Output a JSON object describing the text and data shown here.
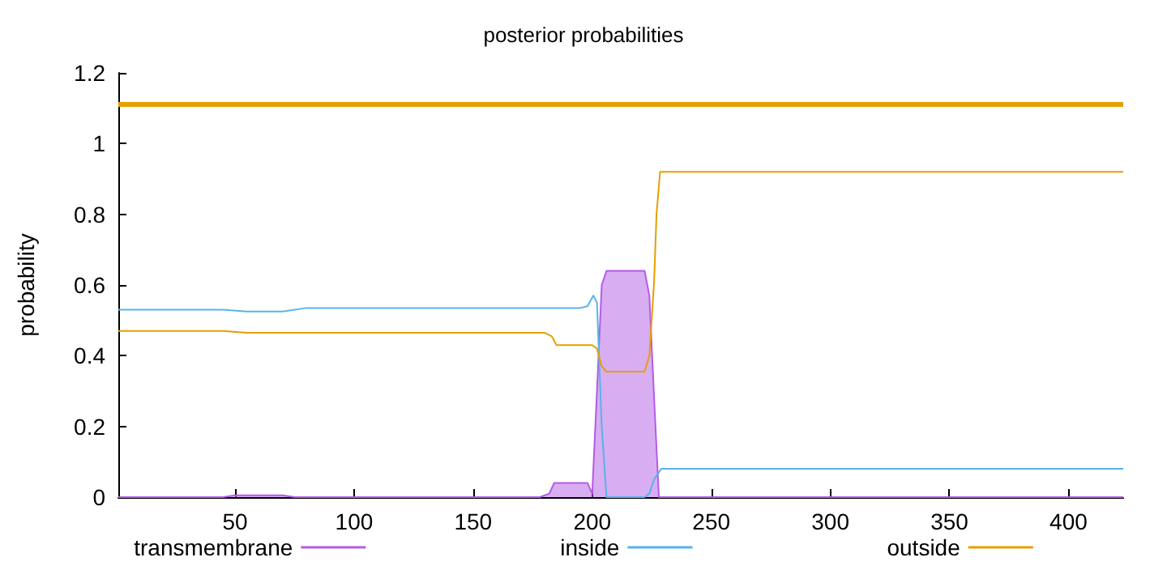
{
  "chart_data": {
    "type": "line",
    "title": "posterior probabilities",
    "ylabel": "probability",
    "xlim": [
      1,
      423
    ],
    "xticks": [
      50,
      100,
      150,
      200,
      250,
      300,
      350,
      400
    ],
    "ylim": [
      0,
      1.2
    ],
    "yticks": [
      0,
      0.2,
      0.4,
      0.6,
      0.8,
      1,
      1.2
    ],
    "grid": false,
    "legend": "bottom",
    "marker": "none",
    "line_style": "solid",
    "series": [
      {
        "name": "transmembrane",
        "type": "area",
        "color": "#b35ce6",
        "x": [
          1,
          45,
          50,
          70,
          75,
          178,
          182,
          184,
          198,
          200,
          202,
          204,
          206,
          222,
          224,
          226,
          228,
          230,
          423
        ],
        "values": [
          0,
          0,
          0.005,
          0.005,
          0,
          0,
          0.01,
          0.04,
          0.04,
          0.01,
          0.3,
          0.6,
          0.64,
          0.64,
          0.57,
          0.28,
          0,
          0,
          0
        ]
      },
      {
        "name": "inside",
        "color": "#56b4e9",
        "x": [
          1,
          45,
          55,
          70,
          80,
          195,
          198,
          200.5,
          202,
          204,
          206,
          222,
          224,
          226,
          229,
          423
        ],
        "values": [
          0.53,
          0.53,
          0.525,
          0.525,
          0.535,
          0.535,
          0.54,
          0.57,
          0.55,
          0.2,
          0,
          0,
          0.01,
          0.05,
          0.08,
          0.08
        ],
        "line_style": "solid"
      },
      {
        "name": "outside",
        "color": "#e69f00",
        "x": [
          1,
          45,
          55,
          180,
          183,
          185,
          200,
          202,
          204,
          206,
          222,
          224,
          226,
          227,
          228.5,
          423
        ],
        "values": [
          0.47,
          0.47,
          0.465,
          0.465,
          0.455,
          0.43,
          0.43,
          0.42,
          0.37,
          0.355,
          0.355,
          0.4,
          0.61,
          0.8,
          0.92,
          0.92
        ]
      }
    ],
    "ref_lines": [
      {
        "axis": "y",
        "value": 1.11,
        "color": "#e69f00",
        "line_style": "solid"
      }
    ]
  }
}
